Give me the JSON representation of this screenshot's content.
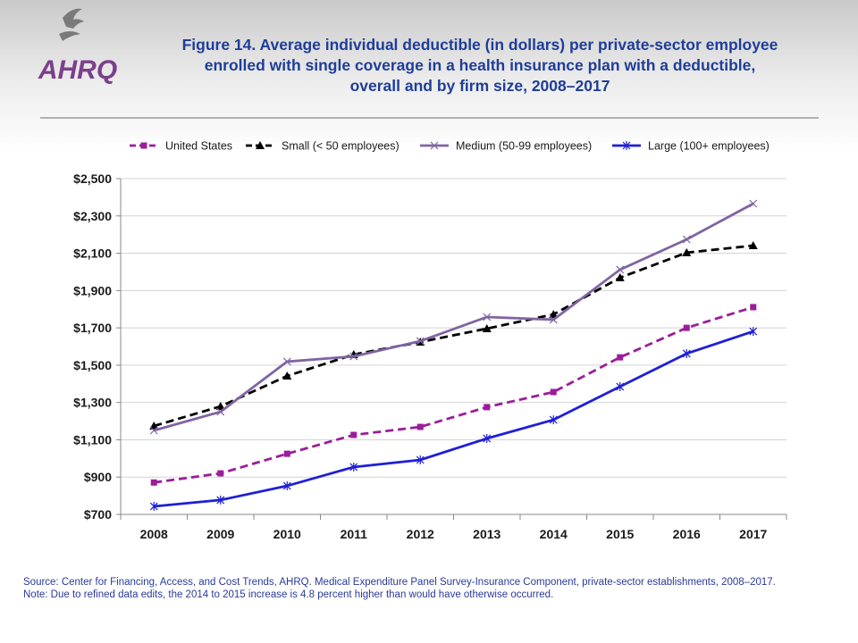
{
  "logo": "AHRQ",
  "chart_data": {
    "type": "line",
    "title": "Figure 14. Average individual deductible (in dollars) per private-sector employee enrolled with single coverage in a health insurance plan with a deductible, overall and by firm size, 2008–2017",
    "categories": [
      "2008",
      "2009",
      "2010",
      "2011",
      "2012",
      "2013",
      "2014",
      "2015",
      "2016",
      "2017"
    ],
    "series": [
      {
        "name": "United States",
        "color": "#9b1d9b",
        "dash": true,
        "marker": "square",
        "values": [
          871,
          920,
          1025,
          1126,
          1169,
          1275,
          1356,
          1542,
          1700,
          1811
        ]
      },
      {
        "name": "Small (< 50 employees)",
        "color": "#000000",
        "dash": true,
        "marker": "triangle",
        "values": [
          1174,
          1279,
          1442,
          1557,
          1624,
          1696,
          1772,
          1969,
          2103,
          2141
        ]
      },
      {
        "name": "Medium (50-99 employees)",
        "color": "#8064a2",
        "dash": false,
        "marker": "x",
        "values": [
          1150,
          1250,
          1519,
          1547,
          1629,
          1758,
          1744,
          2012,
          2174,
          2366
        ]
      },
      {
        "name": "Large (100+ employees)",
        "color": "#1f1fd6",
        "dash": false,
        "marker": "star",
        "values": [
          743,
          777,
          853,
          954,
          992,
          1107,
          1207,
          1385,
          1562,
          1681
        ]
      }
    ],
    "ylim": [
      700,
      2500
    ],
    "yticks": [
      {
        "value": 700,
        "label": "$700"
      },
      {
        "value": 900,
        "label": "$900"
      },
      {
        "value": 1100,
        "label": "$1,100"
      },
      {
        "value": 1300,
        "label": "$1,300"
      },
      {
        "value": 1500,
        "label": "$1,500"
      },
      {
        "value": 1700,
        "label": "$1,700"
      },
      {
        "value": 1900,
        "label": "$1,900"
      },
      {
        "value": 2100,
        "label": "$2,100"
      },
      {
        "value": 2300,
        "label": "$2,300"
      },
      {
        "value": 2500,
        "label": "$2,500"
      }
    ],
    "grid": true,
    "legend": "top",
    "source": "Source: Center for Financing, Access, and Cost Trends, AHRQ. Medical Expenditure Panel Survey-Insurance Component, private-sector establishments, 2008–2017.",
    "note": "Note: Due to refined data edits, the 2014 to 2015 increase is 4.8 percent higher than would have otherwise occurred."
  }
}
